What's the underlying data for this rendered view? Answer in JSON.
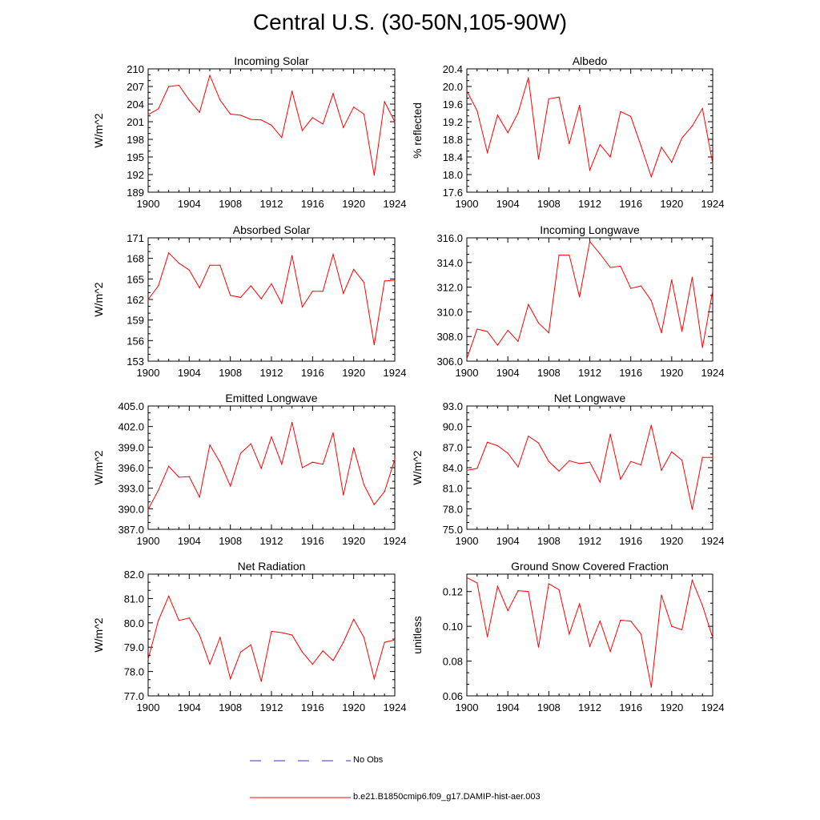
{
  "figure": {
    "title": "Central U.S. (30-50N,105-90W)",
    "line_color": "#ff0000",
    "obs_color": "#3333cc"
  },
  "legend": {
    "obs_label": "No Obs",
    "model_label": "b.e21.B1850cmip6.f09_g17.DAMIP-hist-aer.003"
  },
  "chart_data": [
    {
      "type": "line",
      "title": "Incoming Solar",
      "ylabel": "W/m^2",
      "xlim": [
        1900,
        1924
      ],
      "ylim": [
        189,
        210
      ],
      "xticks": [
        "1900",
        "1904",
        "1908",
        "1912",
        "1916",
        "1920",
        "1924"
      ],
      "yticks": [
        "189",
        "192",
        "195",
        "198",
        "201",
        "204",
        "207",
        "210"
      ],
      "x": [
        1900,
        1901,
        1902,
        1903,
        1904,
        1905,
        1906,
        1907,
        1908,
        1909,
        1910,
        1911,
        1912,
        1913,
        1914,
        1915,
        1916,
        1917,
        1918,
        1919,
        1920,
        1921,
        1922,
        1923,
        1924
      ],
      "values": [
        202.2,
        203.2,
        207.0,
        207.2,
        204.7,
        202.6,
        208.9,
        204.7,
        202.3,
        202.1,
        201.4,
        201.3,
        200.4,
        198.3,
        206.2,
        199.5,
        201.7,
        200.6,
        205.8,
        200.0,
        203.5,
        202.3,
        191.9,
        204.4,
        201.0
      ]
    },
    {
      "type": "line",
      "title": "Albedo",
      "ylabel": "% reflected",
      "xlim": [
        1900,
        1924
      ],
      "ylim": [
        17.6,
        20.4
      ],
      "xticks": [
        "1900",
        "1904",
        "1908",
        "1912",
        "1916",
        "1920",
        "1924"
      ],
      "yticks": [
        "17.6",
        "18.0",
        "18.4",
        "18.8",
        "19.2",
        "19.6",
        "20.0",
        "20.4"
      ],
      "x": [
        1900,
        1901,
        1902,
        1903,
        1904,
        1905,
        1906,
        1907,
        1908,
        1909,
        1910,
        1911,
        1912,
        1913,
        1914,
        1915,
        1916,
        1917,
        1918,
        1919,
        1920,
        1921,
        1922,
        1923,
        1924
      ],
      "values": [
        19.9,
        19.45,
        18.5,
        19.35,
        18.95,
        19.4,
        20.2,
        18.35,
        19.72,
        19.76,
        18.7,
        19.57,
        18.1,
        18.68,
        18.4,
        19.43,
        19.32,
        18.65,
        17.95,
        18.62,
        18.28,
        18.83,
        19.1,
        19.5,
        18.25
      ]
    },
    {
      "type": "line",
      "title": "Absorbed Solar",
      "ylabel": "W/m^2",
      "xlim": [
        1900,
        1924
      ],
      "ylim": [
        153,
        171
      ],
      "xticks": [
        "1900",
        "1904",
        "1908",
        "1912",
        "1916",
        "1920",
        "1924"
      ],
      "yticks": [
        "153",
        "156",
        "159",
        "162",
        "165",
        "168",
        "171"
      ],
      "x": [
        1900,
        1901,
        1902,
        1903,
        1904,
        1905,
        1906,
        1907,
        1908,
        1909,
        1910,
        1911,
        1912,
        1913,
        1914,
        1915,
        1916,
        1917,
        1918,
        1919,
        1920,
        1921,
        1922,
        1923,
        1924
      ],
      "values": [
        162.0,
        164.0,
        168.8,
        167.3,
        166.3,
        163.7,
        167.0,
        167.0,
        162.6,
        162.3,
        164.0,
        162.1,
        164.3,
        161.4,
        168.4,
        160.9,
        163.2,
        163.2,
        168.6,
        162.9,
        166.4,
        164.5,
        155.4,
        164.7,
        164.8
      ]
    },
    {
      "type": "line",
      "title": "Incoming Longwave",
      "ylabel": "",
      "xlim": [
        1900,
        1924
      ],
      "ylim": [
        306.0,
        316.0
      ],
      "xticks": [
        "1900",
        "1904",
        "1908",
        "1912",
        "1916",
        "1920",
        "1924"
      ],
      "yticks": [
        "306.0",
        "308.0",
        "310.0",
        "312.0",
        "314.0",
        "316.0"
      ],
      "x": [
        1900,
        1901,
        1902,
        1903,
        1904,
        1905,
        1906,
        1907,
        1908,
        1909,
        1910,
        1911,
        1912,
        1913,
        1914,
        1915,
        1916,
        1917,
        1918,
        1919,
        1920,
        1921,
        1922,
        1923,
        1924
      ],
      "values": [
        306.2,
        308.6,
        308.4,
        307.3,
        308.5,
        307.6,
        310.6,
        309.1,
        308.3,
        314.6,
        314.6,
        311.2,
        315.7,
        314.7,
        313.6,
        313.7,
        311.9,
        312.1,
        310.9,
        308.3,
        312.6,
        308.4,
        312.8,
        307.1,
        311.7
      ]
    },
    {
      "type": "line",
      "title": "Emitted Longwave",
      "ylabel": "W/m^2",
      "xlim": [
        1900,
        1924
      ],
      "ylim": [
        387.0,
        405.0
      ],
      "xticks": [
        "1900",
        "1904",
        "1908",
        "1912",
        "1916",
        "1920",
        "1924"
      ],
      "yticks": [
        "387.0",
        "390.0",
        "393.0",
        "396.0",
        "399.0",
        "402.0",
        "405.0"
      ],
      "x": [
        1900,
        1901,
        1902,
        1903,
        1904,
        1905,
        1906,
        1907,
        1908,
        1909,
        1910,
        1911,
        1912,
        1913,
        1914,
        1915,
        1916,
        1917,
        1918,
        1919,
        1920,
        1921,
        1922,
        1923,
        1924
      ],
      "values": [
        389.9,
        392.7,
        396.2,
        394.6,
        394.7,
        391.7,
        399.3,
        396.8,
        393.3,
        398.1,
        399.5,
        395.9,
        400.5,
        396.5,
        402.6,
        396.0,
        396.8,
        396.5,
        401.1,
        392.0,
        398.9,
        393.5,
        390.6,
        392.5,
        397.2
      ]
    },
    {
      "type": "line",
      "title": "Net Longwave",
      "ylabel": "W/m^2",
      "xlim": [
        1900,
        1924
      ],
      "ylim": [
        75.0,
        93.0
      ],
      "xticks": [
        "1900",
        "1904",
        "1908",
        "1912",
        "1916",
        "1920",
        "1924"
      ],
      "yticks": [
        "75.0",
        "78.0",
        "81.0",
        "84.0",
        "87.0",
        "90.0",
        "93.0"
      ],
      "x": [
        1900,
        1901,
        1902,
        1903,
        1904,
        1905,
        1906,
        1907,
        1908,
        1909,
        1910,
        1911,
        1912,
        1913,
        1914,
        1915,
        1916,
        1917,
        1918,
        1919,
        1920,
        1921,
        1922,
        1923,
        1924
      ],
      "values": [
        83.6,
        83.9,
        87.7,
        87.2,
        86.1,
        84.1,
        88.6,
        87.6,
        84.9,
        83.5,
        85.0,
        84.6,
        84.8,
        81.9,
        88.9,
        82.3,
        84.9,
        84.4,
        90.2,
        83.6,
        86.3,
        85.1,
        77.9,
        85.5,
        85.5
      ]
    },
    {
      "type": "line",
      "title": "Net Radiation",
      "ylabel": "W/m^2",
      "xlim": [
        1900,
        1924
      ],
      "ylim": [
        77.0,
        82.0
      ],
      "xticks": [
        "1900",
        "1904",
        "1908",
        "1912",
        "1916",
        "1920",
        "1924"
      ],
      "yticks": [
        "77.0",
        "78.0",
        "79.0",
        "80.0",
        "81.0",
        "82.0"
      ],
      "x": [
        1900,
        1901,
        1902,
        1903,
        1904,
        1905,
        1906,
        1907,
        1908,
        1909,
        1910,
        1911,
        1912,
        1913,
        1914,
        1915,
        1916,
        1917,
        1918,
        1919,
        1920,
        1921,
        1922,
        1923,
        1924
      ],
      "values": [
        78.5,
        80.1,
        81.1,
        80.1,
        80.2,
        79.5,
        78.3,
        79.4,
        77.7,
        78.8,
        79.1,
        77.6,
        79.65,
        79.6,
        79.5,
        78.8,
        78.3,
        78.85,
        78.45,
        79.2,
        80.15,
        79.4,
        77.7,
        79.2,
        79.3
      ]
    },
    {
      "type": "line",
      "title": "Ground Snow Covered Fraction",
      "ylabel": "unitless",
      "xlim": [
        1900,
        1924
      ],
      "ylim": [
        0.06,
        0.13
      ],
      "xticks": [
        "1900",
        "1904",
        "1908",
        "1912",
        "1916",
        "1920",
        "1924"
      ],
      "yticks": [
        "0.06",
        "0.08",
        "0.10",
        "0.12"
      ],
      "x": [
        1900,
        1901,
        1902,
        1903,
        1904,
        1905,
        1906,
        1907,
        1908,
        1909,
        1910,
        1911,
        1912,
        1913,
        1914,
        1915,
        1916,
        1917,
        1918,
        1919,
        1920,
        1921,
        1922,
        1923,
        1924
      ],
      "values": [
        0.128,
        0.125,
        0.094,
        0.123,
        0.109,
        0.1205,
        0.12,
        0.088,
        0.1245,
        0.121,
        0.0955,
        0.113,
        0.0885,
        0.103,
        0.0855,
        0.1035,
        0.103,
        0.0955,
        0.065,
        0.118,
        0.1,
        0.098,
        0.1265,
        0.112,
        0.0935
      ]
    }
  ]
}
